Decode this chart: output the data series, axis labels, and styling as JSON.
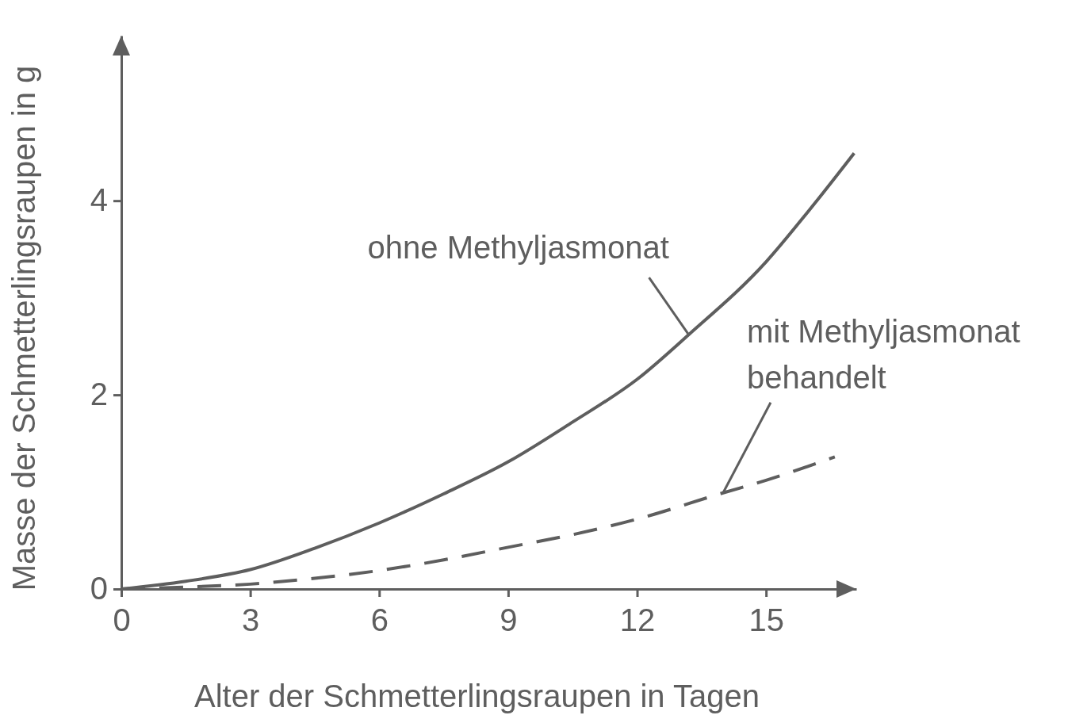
{
  "chart_data": {
    "type": "line",
    "xlabel": "Alter der Schmetterlingsraupen in Tagen",
    "ylabel": "Masse der Schmetterlingsraupen in g",
    "xlim": [
      0,
      17.1
    ],
    "ylim": [
      0,
      5.7
    ],
    "xticks": [
      0,
      3,
      6,
      9,
      12,
      15
    ],
    "yticks": [
      0,
      2,
      4
    ],
    "grid": false,
    "legend": false,
    "marker": "none",
    "series": [
      {
        "name": "ohne Methyljasmonat",
        "color": "#5e5e5e",
        "line_style": "solid",
        "x": [
          0,
          1.5,
          3,
          4.5,
          6,
          7.5,
          9,
          10.5,
          12,
          13.2,
          15,
          16,
          17.05
        ],
        "values": [
          0,
          0.08,
          0.2,
          0.42,
          0.68,
          0.98,
          1.31,
          1.72,
          2.16,
          2.62,
          3.37,
          3.9,
          4.49
        ]
      },
      {
        "name": "mit Methyljasmonat behandelt",
        "color": "#5e5e5e",
        "line_style": "dashed",
        "x": [
          0,
          1.5,
          3,
          4.5,
          6,
          7.5,
          9,
          10.5,
          12,
          14,
          15,
          16.6
        ],
        "values": [
          0,
          0.02,
          0.05,
          0.11,
          0.19,
          0.3,
          0.43,
          0.56,
          0.72,
          0.99,
          1.12,
          1.36
        ]
      }
    ]
  }
}
